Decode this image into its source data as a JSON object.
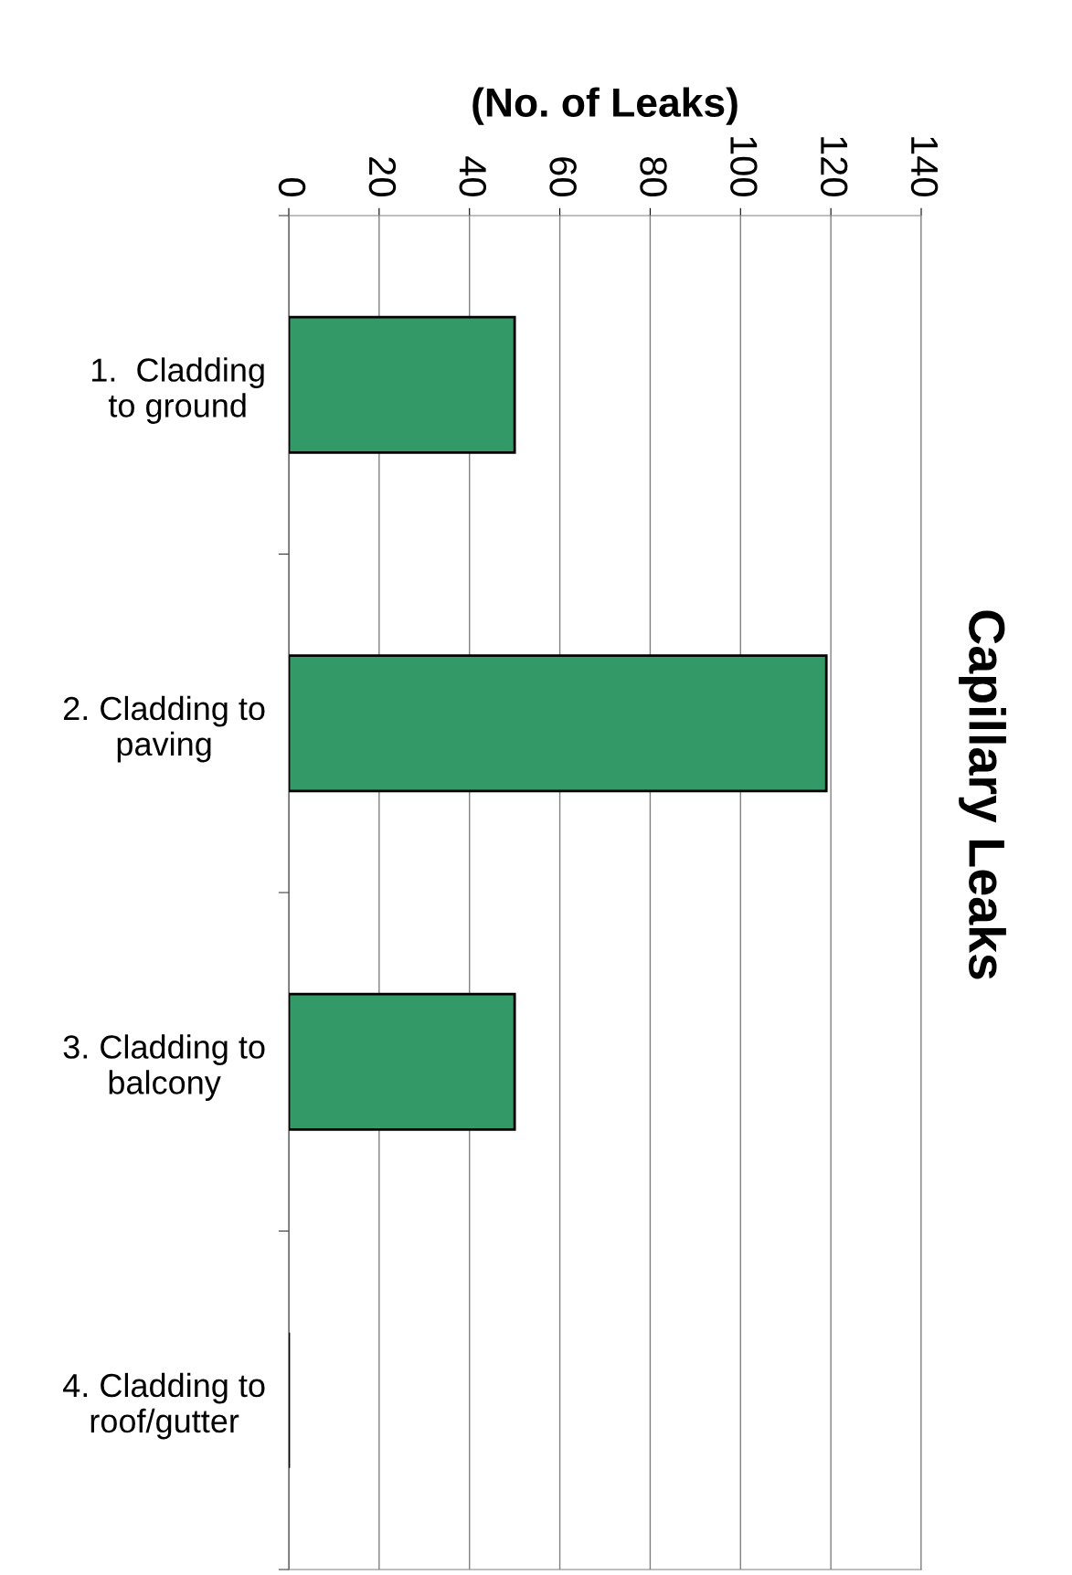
{
  "chart_data": {
    "type": "bar",
    "orientation": "horizontal",
    "title": "Capillary Leaks",
    "xlabel": "(No. of Leaks)",
    "categories": [
      "1.  Cladding\nto ground",
      "2. Cladding to\npaving",
      "3. Cladding to\nbalcony",
      "4. Cladding to\nroof/gutter"
    ],
    "values": [
      50,
      119,
      50,
      0
    ],
    "colors": [
      "#339966",
      "#339966",
      "#339966",
      "#000000"
    ],
    "xlim": [
      0,
      140
    ],
    "xticks": [
      0,
      20,
      40,
      60,
      80,
      100,
      120,
      140
    ],
    "grid": "x"
  }
}
